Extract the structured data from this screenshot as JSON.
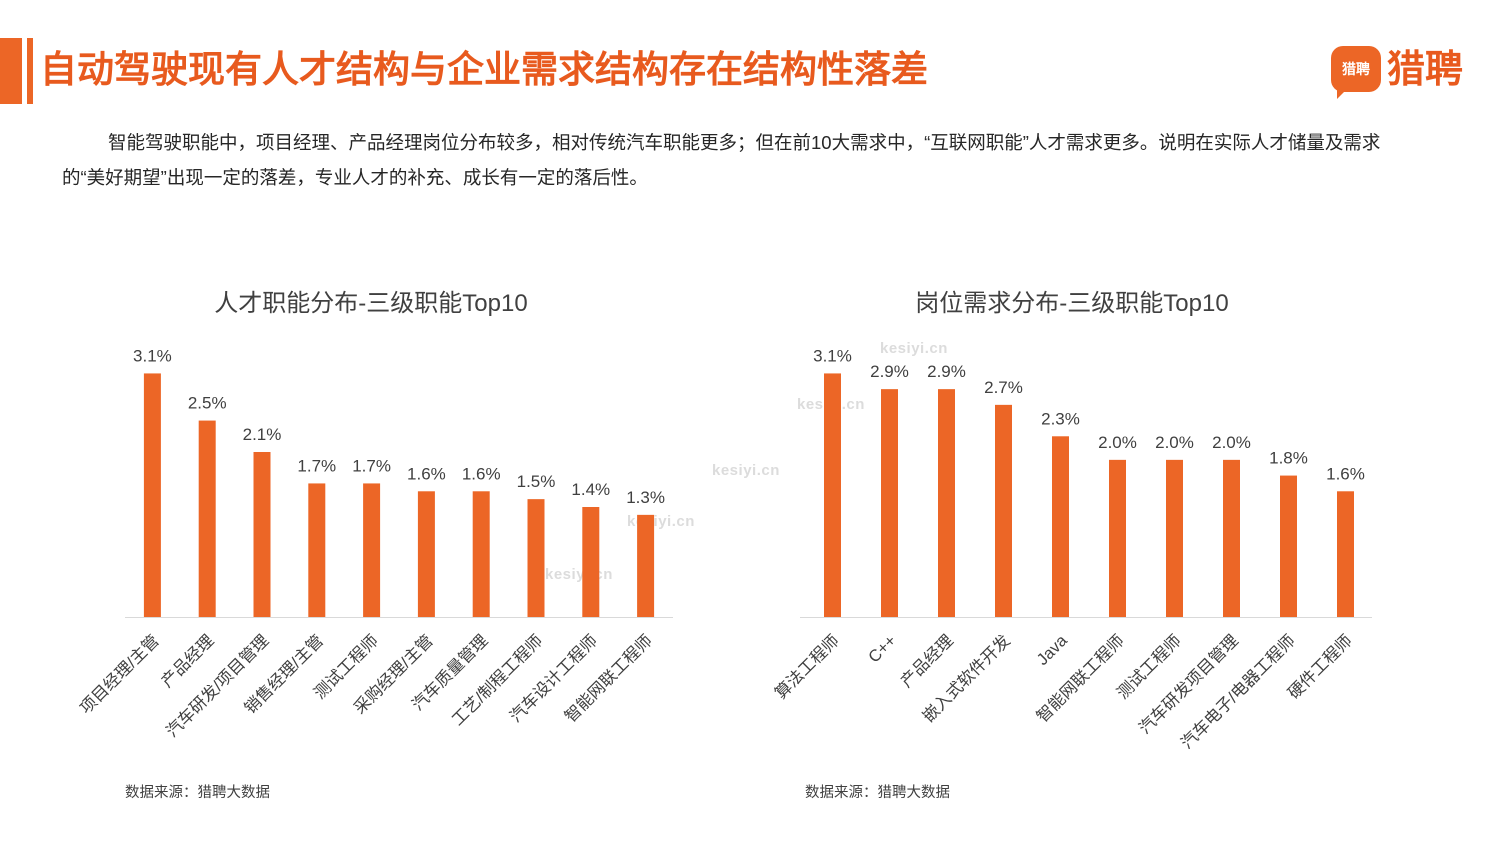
{
  "header": {
    "title": "自动驾驶现有人才结构与企业需求结构存在结构性落差"
  },
  "logo": {
    "badge": "猎聘",
    "wordmark": "猎聘"
  },
  "intro": {
    "lines": [
      "智能驾驶职能中，项目经理、产品经理岗位分布较多，相对传统汽车职能更多；但在前10大需求中，“互联网职能”人才需求更多。说明在实际人才储量及需求",
      "的“美好期望”出现一定的落差，专业人才的补充、成长有一定的落后性。"
    ]
  },
  "watermark": "kesiyi.cn",
  "colors": {
    "brand_orange": "#EC6626",
    "title_orange": "#E85A1E",
    "chart_text": "#404040",
    "axis_line": "#D9D9D9"
  },
  "chart_data": [
    {
      "type": "bar",
      "title": "人才职能分布-三级职能Top10",
      "categories": [
        "项目经理/主管",
        "产品经理",
        "汽车研发/项目管理",
        "销售经理/主管",
        "测试工程师",
        "采购经理/主管",
        "汽车质量管理",
        "工艺/制程工程师",
        "汽车设计工程师",
        "智能网联工程师"
      ],
      "values": [
        3.1,
        2.5,
        2.1,
        1.7,
        1.7,
        1.6,
        1.6,
        1.5,
        1.4,
        1.3
      ],
      "unit": "%",
      "ylim": [
        0,
        3.5
      ],
      "grid": false,
      "legend": "none",
      "source": "数据来源：猎聘大数据"
    },
    {
      "type": "bar",
      "title": "岗位需求分布-三级职能Top10",
      "categories": [
        "算法工程师",
        "C++",
        "产品经理",
        "嵌入式软件开发",
        "Java",
        "智能网联工程师",
        "测试工程师",
        "汽车研发项目管理",
        "汽车电子/电器工程师",
        "硬件工程师"
      ],
      "values": [
        3.1,
        2.9,
        2.9,
        2.7,
        2.3,
        2.0,
        2.0,
        2.0,
        1.8,
        1.6
      ],
      "unit": "%",
      "ylim": [
        0,
        3.5
      ],
      "grid": false,
      "legend": "none",
      "source": "数据来源：猎聘大数据"
    }
  ]
}
